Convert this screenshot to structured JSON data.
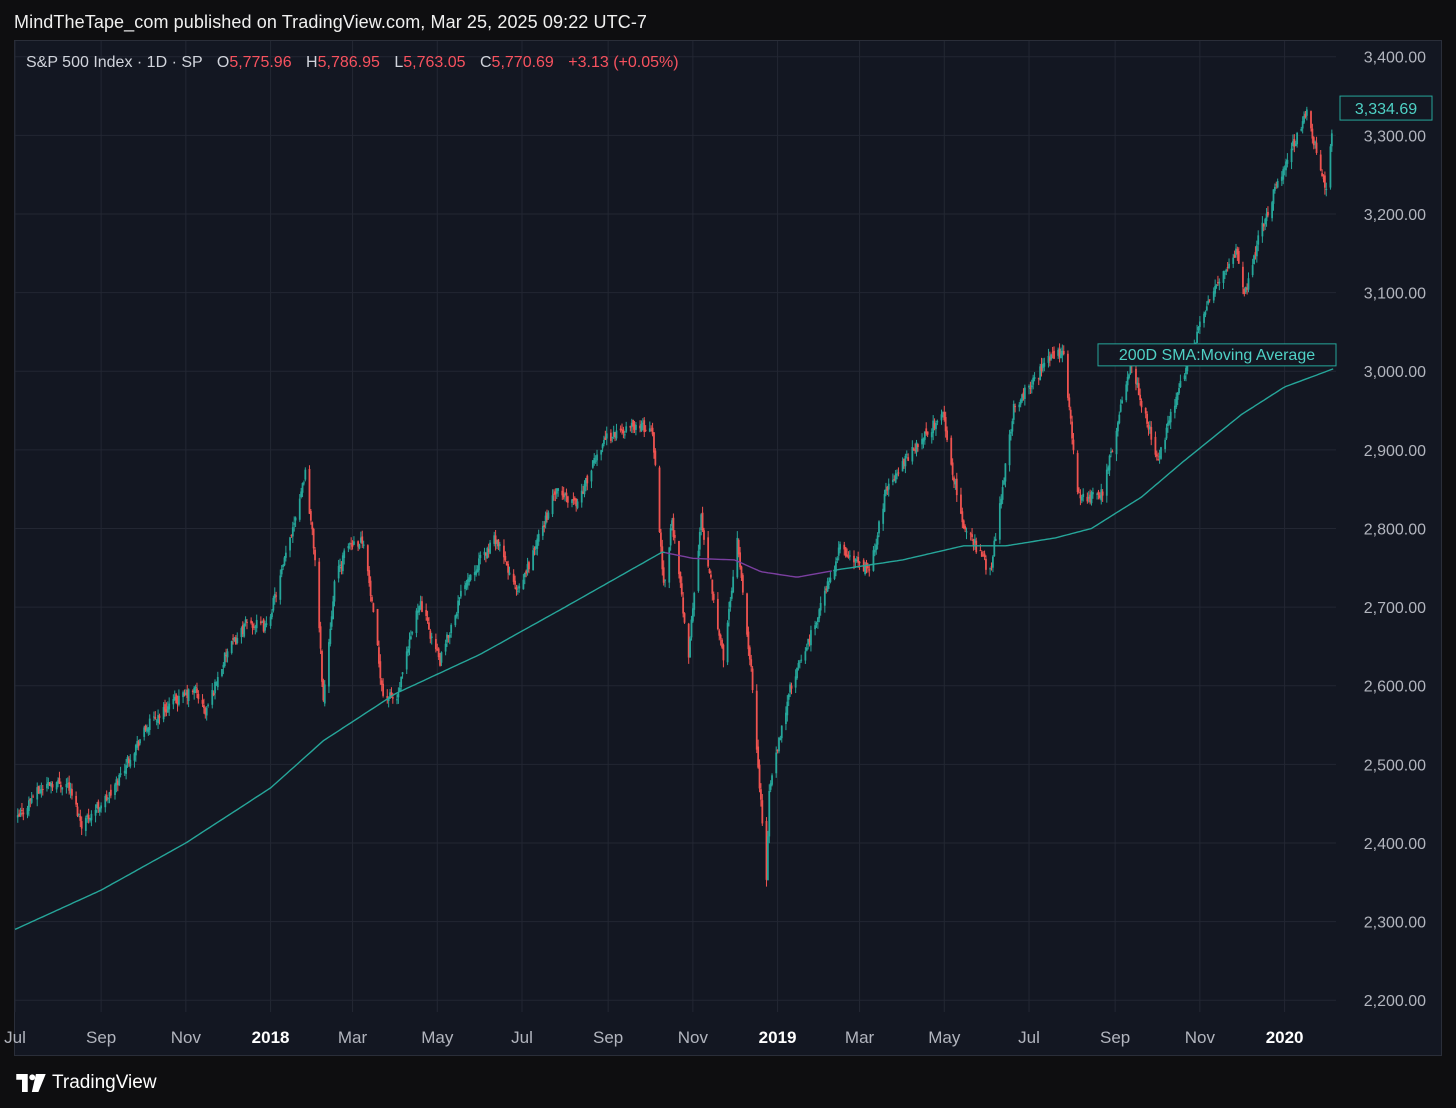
{
  "header": {
    "published_text": "MindTheTape_com published on TradingView.com, Mar 25, 2025 09:22 UTC-7"
  },
  "legend": {
    "symbol_text": "S&P 500 Index · 1D · SP",
    "open_label": "O",
    "open_value": "5,775.96",
    "high_label": "H",
    "high_value": "5,786.95",
    "low_label": "L",
    "low_value": "5,763.05",
    "close_label": "C",
    "close_value": "5,770.69",
    "change_text": "+3.13 (+0.05%)"
  },
  "footer": {
    "brand": "TradingView"
  },
  "colors": {
    "up": "#26a69a",
    "down": "#ef5350",
    "sma_up": "#26a69a",
    "sma_flat": "#7b3fa0",
    "grid": "#232733",
    "axis_text": "#b2b5be",
    "background": "#131722"
  },
  "chart_data": {
    "type": "candlestick",
    "title": "S&P 500 Index · 1D · SP",
    "yticks": [
      2200,
      2300,
      2400,
      2500,
      2600,
      2700,
      2800,
      2900,
      3000,
      3100,
      3200,
      3300,
      3400
    ],
    "ytick_labels": [
      "2,200.00",
      "2,300.00",
      "2,400.00",
      "2,500.00",
      "2,600.00",
      "2,700.00",
      "2,800.00",
      "2,900.00",
      "3,000.00",
      "3,100.00",
      "3,200.00",
      "3,300.00",
      "3,400.00"
    ],
    "ylim": [
      2185,
      3420
    ],
    "xlim": [
      "2017-07-01",
      "2020-02-07"
    ],
    "xticks": [
      {
        "date": "2017-07-01",
        "label": "Jul",
        "bold": false
      },
      {
        "date": "2017-09-01",
        "label": "Sep",
        "bold": false
      },
      {
        "date": "2017-11-01",
        "label": "Nov",
        "bold": false
      },
      {
        "date": "2018-01-01",
        "label": "2018",
        "bold": true
      },
      {
        "date": "2018-03-01",
        "label": "Mar",
        "bold": false
      },
      {
        "date": "2018-05-01",
        "label": "May",
        "bold": false
      },
      {
        "date": "2018-07-01",
        "label": "Jul",
        "bold": false
      },
      {
        "date": "2018-09-01",
        "label": "Sep",
        "bold": false
      },
      {
        "date": "2018-11-01",
        "label": "Nov",
        "bold": false
      },
      {
        "date": "2019-01-01",
        "label": "2019",
        "bold": true
      },
      {
        "date": "2019-03-01",
        "label": "Mar",
        "bold": false
      },
      {
        "date": "2019-05-01",
        "label": "May",
        "bold": false
      },
      {
        "date": "2019-07-01",
        "label": "Jul",
        "bold": false
      },
      {
        "date": "2019-09-01",
        "label": "Sep",
        "bold": false
      },
      {
        "date": "2019-11-01",
        "label": "Nov",
        "bold": false
      },
      {
        "date": "2020-01-01",
        "label": "2020",
        "bold": true
      }
    ],
    "price_anchors": [
      [
        "2017-07-03",
        2430
      ],
      [
        "2017-07-14",
        2460
      ],
      [
        "2017-07-26",
        2477
      ],
      [
        "2017-08-08",
        2475
      ],
      [
        "2017-08-18",
        2425
      ],
      [
        "2017-08-29",
        2445
      ],
      [
        "2017-09-08",
        2462
      ],
      [
        "2017-09-20",
        2505
      ],
      [
        "2017-10-05",
        2550
      ],
      [
        "2017-10-20",
        2575
      ],
      [
        "2017-11-08",
        2595
      ],
      [
        "2017-11-15",
        2565
      ],
      [
        "2017-11-30",
        2640
      ],
      [
        "2017-12-15",
        2680
      ],
      [
        "2017-12-29",
        2674
      ],
      [
        "2018-01-10",
        2750
      ],
      [
        "2018-01-26",
        2872
      ],
      [
        "2018-02-02",
        2762
      ],
      [
        "2018-02-08",
        2581
      ],
      [
        "2018-02-16",
        2732
      ],
      [
        "2018-02-26",
        2780
      ],
      [
        "2018-03-09",
        2786
      ],
      [
        "2018-03-23",
        2588
      ],
      [
        "2018-04-02",
        2582
      ],
      [
        "2018-04-18",
        2708
      ],
      [
        "2018-05-03",
        2630
      ],
      [
        "2018-05-21",
        2733
      ],
      [
        "2018-06-12",
        2787
      ],
      [
        "2018-06-28",
        2716
      ],
      [
        "2018-07-25",
        2846
      ],
      [
        "2018-08-10",
        2833
      ],
      [
        "2018-08-29",
        2914
      ],
      [
        "2018-09-20",
        2931
      ],
      [
        "2018-10-03",
        2925
      ],
      [
        "2018-10-11",
        2728
      ],
      [
        "2018-10-17",
        2810
      ],
      [
        "2018-10-29",
        2641
      ],
      [
        "2018-11-07",
        2813
      ],
      [
        "2018-11-23",
        2633
      ],
      [
        "2018-12-03",
        2790
      ],
      [
        "2018-12-14",
        2600
      ],
      [
        "2018-12-24",
        2351
      ],
      [
        "2018-12-26",
        2467
      ],
      [
        "2019-01-10",
        2596
      ],
      [
        "2019-01-25",
        2664
      ],
      [
        "2019-02-15",
        2775
      ],
      [
        "2019-03-08",
        2743
      ],
      [
        "2019-03-21",
        2855
      ],
      [
        "2019-04-05",
        2892
      ],
      [
        "2019-04-30",
        2946
      ],
      [
        "2019-05-13",
        2812
      ],
      [
        "2019-06-03",
        2744
      ],
      [
        "2019-06-20",
        2954
      ],
      [
        "2019-07-15",
        3014
      ],
      [
        "2019-07-26",
        3025
      ],
      [
        "2019-08-05",
        2844
      ],
      [
        "2019-08-14",
        2840
      ],
      [
        "2019-08-23",
        2847
      ],
      [
        "2019-09-12",
        3009
      ],
      [
        "2019-10-02",
        2887
      ],
      [
        "2019-10-18",
        2986
      ],
      [
        "2019-11-08",
        3093
      ],
      [
        "2019-11-27",
        3153
      ],
      [
        "2019-12-03",
        3094
      ],
      [
        "2019-12-13",
        3168
      ],
      [
        "2019-12-27",
        3240
      ],
      [
        "2020-01-17",
        3330
      ],
      [
        "2020-01-31",
        3225
      ],
      [
        "2020-02-04",
        3297
      ]
    ],
    "sma_anchors": [
      [
        "2017-07-01",
        2290
      ],
      [
        "2017-09-01",
        2340
      ],
      [
        "2017-11-01",
        2400
      ],
      [
        "2018-01-01",
        2470
      ],
      [
        "2018-02-08",
        2530
      ],
      [
        "2018-04-01",
        2590
      ],
      [
        "2018-06-01",
        2640
      ],
      [
        "2018-08-01",
        2700
      ],
      [
        "2018-10-10",
        2770
      ],
      [
        "2018-11-01",
        2762
      ],
      [
        "2018-12-01",
        2760
      ],
      [
        "2018-12-20",
        2745
      ],
      [
        "2019-01-15",
        2738
      ],
      [
        "2019-02-15",
        2748
      ],
      [
        "2019-04-01",
        2760
      ],
      [
        "2019-05-15",
        2778
      ],
      [
        "2019-06-15",
        2778
      ],
      [
        "2019-07-20",
        2788
      ],
      [
        "2019-08-15",
        2800
      ],
      [
        "2019-09-20",
        2840
      ],
      [
        "2019-10-20",
        2885
      ],
      [
        "2019-12-01",
        2945
      ],
      [
        "2020-01-01",
        2980
      ],
      [
        "2020-02-05",
        3003
      ]
    ],
    "sma_flat_range": [
      "2018-10-12",
      "2019-02-10"
    ],
    "series": [
      {
        "name": "S&P 500 Index · 1D · SP",
        "style": "candles"
      },
      {
        "name": "200D SMA:Moving Average",
        "style": "line"
      }
    ],
    "last_price_label": "3,334.69",
    "last_price_value": 3334.69,
    "sma_label": "200D SMA:Moving Average",
    "sma_label_value": 3003,
    "grid": true
  }
}
